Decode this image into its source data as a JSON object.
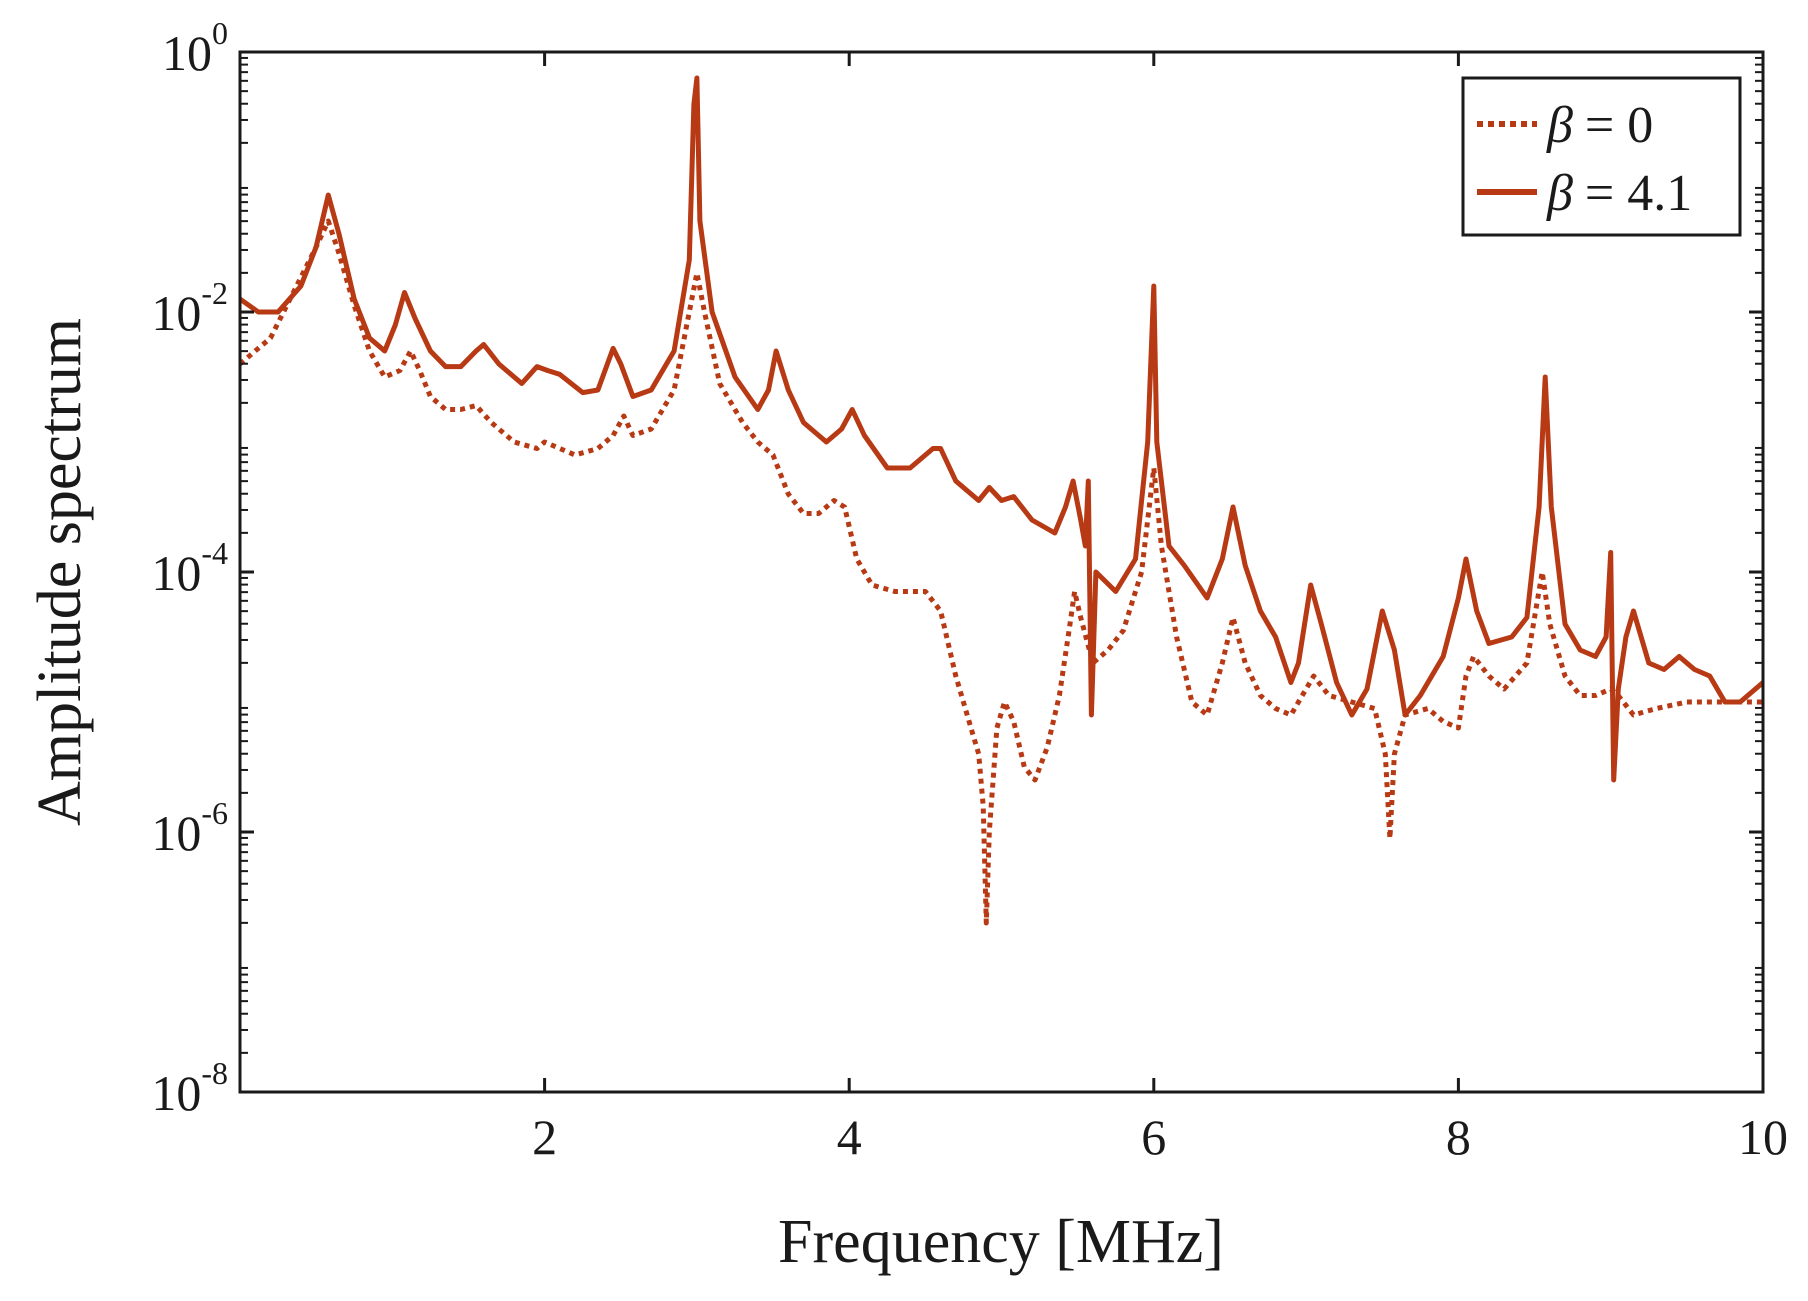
{
  "chart_data": {
    "type": "line",
    "title": "",
    "xlabel": "Frequency [MHz]",
    "ylabel": "Amplitude spectrum",
    "xlim": [
      0,
      10
    ],
    "ylim_log10": [
      -8,
      0
    ],
    "xscale": "linear",
    "yscale": "log",
    "grid": false,
    "legend_position": "top-right",
    "colors": {
      "series": "#b83a14",
      "axis": "#1a1a1a"
    },
    "x_ticks": [
      {
        "value": 2,
        "label": "2"
      },
      {
        "value": 4,
        "label": "4"
      },
      {
        "value": 6,
        "label": "6"
      },
      {
        "value": 8,
        "label": "8"
      },
      {
        "value": 10,
        "label": "10"
      }
    ],
    "y_ticks": [
      {
        "exp": 0,
        "base": "10",
        "power": "0"
      },
      {
        "exp": -2,
        "base": "10",
        "power": "-2"
      },
      {
        "exp": -4,
        "base": "10",
        "power": "-4"
      },
      {
        "exp": -6,
        "base": "10",
        "power": "-6"
      },
      {
        "exp": -8,
        "base": "10",
        "power": "-8"
      }
    ],
    "series": [
      {
        "name": "β = 0",
        "legend_symbol": "β",
        "legend_value": "= 0",
        "style": "dotted",
        "points": [
          [
            0.0,
            -2.4
          ],
          [
            0.2,
            -2.2
          ],
          [
            0.35,
            -1.85
          ],
          [
            0.5,
            -1.5
          ],
          [
            0.58,
            -1.3
          ],
          [
            0.65,
            -1.55
          ],
          [
            0.75,
            -1.95
          ],
          [
            0.85,
            -2.3
          ],
          [
            0.95,
            -2.5
          ],
          [
            1.05,
            -2.45
          ],
          [
            1.12,
            -2.3
          ],
          [
            1.18,
            -2.45
          ],
          [
            1.25,
            -2.65
          ],
          [
            1.35,
            -2.75
          ],
          [
            1.45,
            -2.75
          ],
          [
            1.55,
            -2.72
          ],
          [
            1.65,
            -2.85
          ],
          [
            1.8,
            -3.0
          ],
          [
            1.95,
            -3.05
          ],
          [
            2.0,
            -3.0
          ],
          [
            2.1,
            -3.05
          ],
          [
            2.2,
            -3.1
          ],
          [
            2.35,
            -3.05
          ],
          [
            2.45,
            -2.95
          ],
          [
            2.52,
            -2.8
          ],
          [
            2.58,
            -2.95
          ],
          [
            2.7,
            -2.9
          ],
          [
            2.85,
            -2.6
          ],
          [
            2.95,
            -2.0
          ],
          [
            3.0,
            -1.7
          ],
          [
            3.05,
            -2.0
          ],
          [
            3.15,
            -2.55
          ],
          [
            3.3,
            -2.85
          ],
          [
            3.4,
            -3.0
          ],
          [
            3.5,
            -3.1
          ],
          [
            3.6,
            -3.4
          ],
          [
            3.7,
            -3.55
          ],
          [
            3.8,
            -3.55
          ],
          [
            3.9,
            -3.45
          ],
          [
            3.97,
            -3.5
          ],
          [
            4.05,
            -3.9
          ],
          [
            4.15,
            -4.1
          ],
          [
            4.3,
            -4.15
          ],
          [
            4.5,
            -4.15
          ],
          [
            4.6,
            -4.3
          ],
          [
            4.7,
            -4.8
          ],
          [
            4.8,
            -5.2
          ],
          [
            4.85,
            -5.4
          ],
          [
            4.88,
            -5.8
          ],
          [
            4.9,
            -6.7
          ],
          [
            4.92,
            -6.0
          ],
          [
            4.97,
            -5.2
          ],
          [
            5.02,
            -5.0
          ],
          [
            5.08,
            -5.15
          ],
          [
            5.15,
            -5.5
          ],
          [
            5.22,
            -5.6
          ],
          [
            5.3,
            -5.35
          ],
          [
            5.38,
            -4.95
          ],
          [
            5.45,
            -4.4
          ],
          [
            5.48,
            -4.15
          ],
          [
            5.52,
            -4.35
          ],
          [
            5.6,
            -4.7
          ],
          [
            5.7,
            -4.6
          ],
          [
            5.8,
            -4.45
          ],
          [
            5.92,
            -4.0
          ],
          [
            6.0,
            -3.2
          ],
          [
            6.05,
            -3.8
          ],
          [
            6.15,
            -4.5
          ],
          [
            6.25,
            -5.0
          ],
          [
            6.35,
            -5.1
          ],
          [
            6.45,
            -4.7
          ],
          [
            6.52,
            -4.35
          ],
          [
            6.6,
            -4.7
          ],
          [
            6.7,
            -4.95
          ],
          [
            6.8,
            -5.05
          ],
          [
            6.9,
            -5.1
          ],
          [
            7.0,
            -4.9
          ],
          [
            7.05,
            -4.8
          ],
          [
            7.15,
            -4.95
          ],
          [
            7.3,
            -5.0
          ],
          [
            7.45,
            -5.05
          ],
          [
            7.52,
            -5.4
          ],
          [
            7.55,
            -6.05
          ],
          [
            7.58,
            -5.4
          ],
          [
            7.65,
            -5.1
          ],
          [
            7.8,
            -5.05
          ],
          [
            7.9,
            -5.15
          ],
          [
            8.0,
            -5.2
          ],
          [
            8.05,
            -4.8
          ],
          [
            8.1,
            -4.65
          ],
          [
            8.2,
            -4.8
          ],
          [
            8.3,
            -4.9
          ],
          [
            8.45,
            -4.7
          ],
          [
            8.55,
            -4.0
          ],
          [
            8.6,
            -4.4
          ],
          [
            8.7,
            -4.8
          ],
          [
            8.8,
            -4.95
          ],
          [
            8.9,
            -4.95
          ],
          [
            9.0,
            -4.9
          ],
          [
            9.05,
            -4.95
          ],
          [
            9.15,
            -5.1
          ],
          [
            9.3,
            -5.05
          ],
          [
            9.5,
            -5.0
          ],
          [
            9.7,
            -5.0
          ],
          [
            10.0,
            -5.0
          ]
        ]
      },
      {
        "name": "β = 4.1",
        "legend_symbol": "β",
        "legend_value": "= 4.1",
        "style": "solid",
        "points": [
          [
            0.0,
            -1.9
          ],
          [
            0.12,
            -2.0
          ],
          [
            0.25,
            -2.0
          ],
          [
            0.4,
            -1.8
          ],
          [
            0.5,
            -1.5
          ],
          [
            0.58,
            -1.1
          ],
          [
            0.65,
            -1.4
          ],
          [
            0.75,
            -1.9
          ],
          [
            0.85,
            -2.2
          ],
          [
            0.95,
            -2.3
          ],
          [
            1.02,
            -2.1
          ],
          [
            1.08,
            -1.85
          ],
          [
            1.15,
            -2.05
          ],
          [
            1.25,
            -2.3
          ],
          [
            1.35,
            -2.42
          ],
          [
            1.45,
            -2.42
          ],
          [
            1.55,
            -2.3
          ],
          [
            1.6,
            -2.25
          ],
          [
            1.7,
            -2.4
          ],
          [
            1.85,
            -2.55
          ],
          [
            1.95,
            -2.42
          ],
          [
            2.02,
            -2.45
          ],
          [
            2.1,
            -2.48
          ],
          [
            2.25,
            -2.62
          ],
          [
            2.35,
            -2.6
          ],
          [
            2.45,
            -2.28
          ],
          [
            2.5,
            -2.4
          ],
          [
            2.58,
            -2.65
          ],
          [
            2.7,
            -2.6
          ],
          [
            2.85,
            -2.3
          ],
          [
            2.95,
            -1.6
          ],
          [
            2.98,
            -0.4
          ],
          [
            3.0,
            -0.2
          ],
          [
            3.02,
            -1.3
          ],
          [
            3.1,
            -2.0
          ],
          [
            3.25,
            -2.5
          ],
          [
            3.4,
            -2.75
          ],
          [
            3.47,
            -2.6
          ],
          [
            3.52,
            -2.3
          ],
          [
            3.6,
            -2.6
          ],
          [
            3.7,
            -2.85
          ],
          [
            3.85,
            -3.0
          ],
          [
            3.95,
            -2.9
          ],
          [
            4.02,
            -2.75
          ],
          [
            4.1,
            -2.95
          ],
          [
            4.25,
            -3.2
          ],
          [
            4.4,
            -3.2
          ],
          [
            4.55,
            -3.05
          ],
          [
            4.6,
            -3.05
          ],
          [
            4.7,
            -3.3
          ],
          [
            4.85,
            -3.45
          ],
          [
            4.92,
            -3.35
          ],
          [
            5.0,
            -3.45
          ],
          [
            5.08,
            -3.42
          ],
          [
            5.2,
            -3.6
          ],
          [
            5.35,
            -3.7
          ],
          [
            5.42,
            -3.5
          ],
          [
            5.47,
            -3.3
          ],
          [
            5.52,
            -3.6
          ],
          [
            5.55,
            -3.8
          ],
          [
            5.57,
            -3.3
          ],
          [
            5.59,
            -5.1
          ],
          [
            5.62,
            -4.0
          ],
          [
            5.75,
            -4.15
          ],
          [
            5.88,
            -3.9
          ],
          [
            5.96,
            -3.0
          ],
          [
            6.0,
            -1.8
          ],
          [
            6.02,
            -3.0
          ],
          [
            6.1,
            -3.8
          ],
          [
            6.2,
            -3.95
          ],
          [
            6.35,
            -4.2
          ],
          [
            6.45,
            -3.9
          ],
          [
            6.52,
            -3.5
          ],
          [
            6.6,
            -3.95
          ],
          [
            6.7,
            -4.3
          ],
          [
            6.8,
            -4.5
          ],
          [
            6.9,
            -4.85
          ],
          [
            6.95,
            -4.7
          ],
          [
            7.03,
            -4.1
          ],
          [
            7.1,
            -4.4
          ],
          [
            7.2,
            -4.85
          ],
          [
            7.3,
            -5.1
          ],
          [
            7.4,
            -4.9
          ],
          [
            7.5,
            -4.3
          ],
          [
            7.58,
            -4.6
          ],
          [
            7.65,
            -5.1
          ],
          [
            7.75,
            -4.95
          ],
          [
            7.9,
            -4.65
          ],
          [
            8.0,
            -4.2
          ],
          [
            8.05,
            -3.9
          ],
          [
            8.12,
            -4.3
          ],
          [
            8.2,
            -4.55
          ],
          [
            8.35,
            -4.5
          ],
          [
            8.45,
            -4.35
          ],
          [
            8.53,
            -3.5
          ],
          [
            8.57,
            -2.5
          ],
          [
            8.61,
            -3.5
          ],
          [
            8.7,
            -4.4
          ],
          [
            8.8,
            -4.6
          ],
          [
            8.9,
            -4.65
          ],
          [
            8.97,
            -4.5
          ],
          [
            9.0,
            -3.85
          ],
          [
            9.02,
            -5.6
          ],
          [
            9.05,
            -4.9
          ],
          [
            9.1,
            -4.5
          ],
          [
            9.15,
            -4.3
          ],
          [
            9.25,
            -4.7
          ],
          [
            9.35,
            -4.75
          ],
          [
            9.45,
            -4.65
          ],
          [
            9.55,
            -4.75
          ],
          [
            9.65,
            -4.8
          ],
          [
            9.75,
            -5.0
          ],
          [
            9.85,
            -5.0
          ],
          [
            9.95,
            -4.9
          ],
          [
            10.0,
            -4.85
          ]
        ]
      }
    ]
  }
}
